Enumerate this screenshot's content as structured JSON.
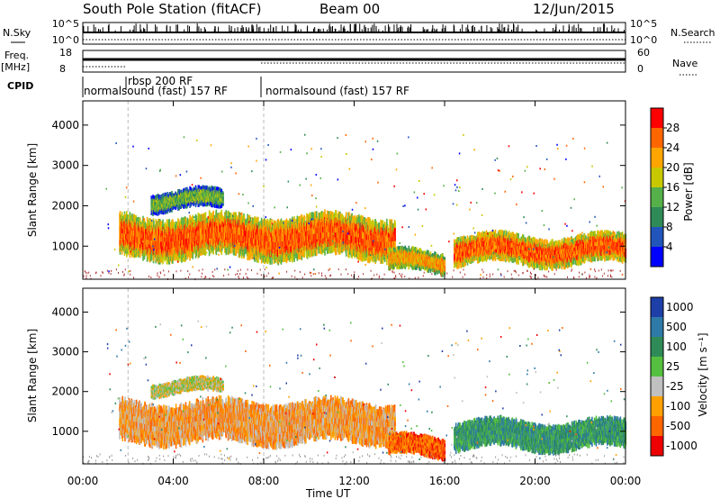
{
  "header": {
    "title": "South Pole Station (fitACF)",
    "beam": "Beam 00",
    "date": "12/Jun/2015"
  },
  "top_panels": {
    "nsky_label": "N.Sky",
    "nsearch_label": "N.Search",
    "freq_label_1": "Freq.",
    "freq_label_2": "[MHz]",
    "nave_label": "Nave",
    "cpid_label": "CPID",
    "nsky_ticks": [
      "10^5",
      "10^0"
    ],
    "nsearch_ticks": [
      "10^5",
      "10^0"
    ],
    "freq_ticks": [
      "18",
      "8"
    ],
    "nave_ticks": [
      "60",
      "0"
    ]
  },
  "cpid": {
    "programs": [
      {
        "label": "normalsound (fast) 157 RF",
        "start_hour": 0
      },
      {
        "label": "rbsp 200 RF",
        "start_hour": 2
      },
      {
        "label": "normalsound (fast) 157 RF",
        "start_hour": 8
      }
    ]
  },
  "chart_data": [
    {
      "type": "heatmap",
      "panel": "power",
      "ylabel": "Slant Range [km]",
      "xlabel": "",
      "ylim": [
        180,
        4600
      ],
      "xlim": [
        0,
        24
      ],
      "yticks": [
        "1000",
        "2000",
        "3000",
        "4000"
      ],
      "xticks": [],
      "colorbar": {
        "label": "Power [dB]",
        "range": [
          0,
          32
        ],
        "ticks": [
          "4",
          "8",
          "12",
          "16",
          "20",
          "24",
          "28"
        ],
        "colors": [
          "#0000ff",
          "#2255bb",
          "#2e8b57",
          "#55b04a",
          "#c8c800",
          "#ffa500",
          "#ff6600",
          "#ff0000"
        ]
      },
      "data_regions": [
        {
          "t0": 1.6,
          "t1": 13.8,
          "r0": 650,
          "r1": 1800,
          "level": 26
        },
        {
          "t0": 3.0,
          "t1": 6.2,
          "r0": 1850,
          "r1": 2400,
          "level": 14
        },
        {
          "t0": 13.5,
          "t1": 16.0,
          "r0": 300,
          "r1": 900,
          "level": 22
        },
        {
          "t0": 16.4,
          "t1": 24.0,
          "r0": 500,
          "r1": 1300,
          "level": 27
        }
      ]
    },
    {
      "type": "heatmap",
      "panel": "velocity",
      "ylabel": "Slant Range [km]",
      "xlabel": "Time UT",
      "ylim": [
        180,
        4600
      ],
      "xlim": [
        0,
        24
      ],
      "yticks": [
        "1000",
        "2000",
        "3000",
        "4000"
      ],
      "xticks": [
        "00:00",
        "04:00",
        "08:00",
        "12:00",
        "16:00",
        "20:00",
        "00:00"
      ],
      "colorbar": {
        "label": "Velocity [m s⁻¹]",
        "ticks": [
          "1000",
          "500",
          "100",
          "25",
          "-25",
          "-100",
          "-500",
          "-1000"
        ],
        "colors": [
          "#1e3fa8",
          "#2e7aa8",
          "#2e8b57",
          "#55c040",
          "#c0c0c0",
          "#ffa000",
          "#ff6600",
          "#ee0000"
        ]
      },
      "data_regions": [
        {
          "t0": 1.6,
          "t1": 13.8,
          "r0": 650,
          "r1": 1800,
          "velocity": -100
        },
        {
          "t0": 3.0,
          "t1": 6.2,
          "r0": 1900,
          "r1": 2300,
          "velocity": 25
        },
        {
          "t0": 13.5,
          "t1": 16.0,
          "r0": 300,
          "r1": 900,
          "velocity": -500
        },
        {
          "t0": 16.4,
          "t1": 24.0,
          "r0": 500,
          "r1": 1300,
          "velocity": 100
        }
      ]
    }
  ]
}
